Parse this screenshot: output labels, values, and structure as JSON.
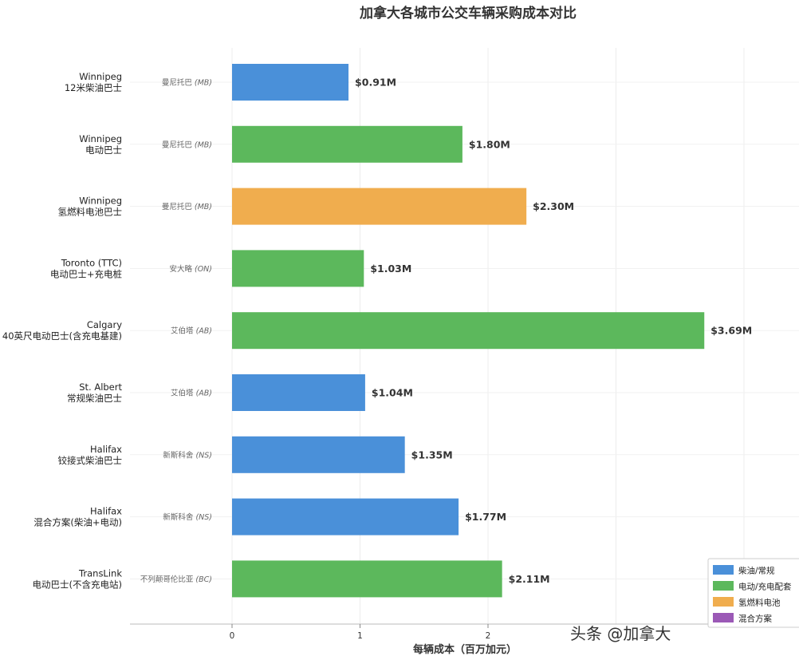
{
  "chart_data": {
    "type": "bar",
    "orientation": "horizontal",
    "title": "加拿大各城市公交车辆采购成本对比",
    "xlabel": "每辆成本（百万加元）",
    "xlim": [
      0,
      3.7
    ],
    "x_ticks": [
      "0",
      "1",
      "2"
    ],
    "grid": true,
    "legend_position": "bottom-right",
    "categories": [
      {
        "city": "Winnipeg",
        "desc": "12米柴油巴士",
        "province": "曼尼托巴",
        "abbr": "(MB)",
        "value": 0.91,
        "label": "$0.91M",
        "type": "柴油/常规"
      },
      {
        "city": "Winnipeg",
        "desc": "电动巴士",
        "province": "曼尼托巴",
        "abbr": "(MB)",
        "value": 1.8,
        "label": "$1.80M",
        "type": "电动/充电配套"
      },
      {
        "city": "Winnipeg",
        "desc": "氢燃料电池巴士",
        "province": "曼尼托巴",
        "abbr": "(MB)",
        "value": 2.3,
        "label": "$2.30M",
        "type": "氢燃料电池"
      },
      {
        "city": "Toronto (TTC)",
        "desc": "电动巴士+充电桩",
        "province": "安大略",
        "abbr": "(ON)",
        "value": 1.03,
        "label": "$1.03M",
        "type": "电动/充电配套"
      },
      {
        "city": "Calgary",
        "desc": "40英尺电动巴士(含充电基建)",
        "province": "艾伯塔",
        "abbr": "(AB)",
        "value": 3.69,
        "label": "$3.69M",
        "type": "电动/充电配套"
      },
      {
        "city": "St. Albert",
        "desc": "常规柴油巴士",
        "province": "艾伯塔",
        "abbr": "(AB)",
        "value": 1.04,
        "label": "$1.04M",
        "type": "柴油/常规"
      },
      {
        "city": "Halifax",
        "desc": "铰接式柴油巴士",
        "province": "新斯科舍",
        "abbr": "(NS)",
        "value": 1.35,
        "label": "$1.35M",
        "type": "柴油/常规"
      },
      {
        "city": "Halifax",
        "desc": "混合方案(柴油+电动)",
        "province": "新斯科舍",
        "abbr": "(NS)",
        "value": 1.77,
        "label": "$1.77M",
        "type": "柴油/常规"
      },
      {
        "city": "TransLink",
        "desc": "电动巴士(不含充电站)",
        "province": "不列颠哥伦比亚",
        "abbr": "(BC)",
        "value": 2.11,
        "label": "$2.11M",
        "type": "电动/充电配套"
      }
    ],
    "legend": [
      {
        "name": "柴油/常规",
        "color": "#4a90d9"
      },
      {
        "name": "电动/充电配套",
        "color": "#5cb85c"
      },
      {
        "name": "氢燃料电池",
        "color": "#f0ad4e"
      },
      {
        "name": "混合方案",
        "color": "#9b59b6"
      }
    ]
  },
  "watermark": "头条 @加拿大"
}
